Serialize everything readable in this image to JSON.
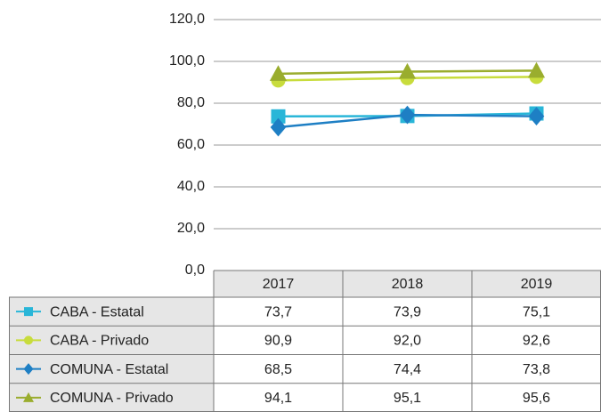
{
  "chart_data": {
    "type": "line",
    "categories": [
      "2017",
      "2018",
      "2019"
    ],
    "series": [
      {
        "name": "CABA - Estatal",
        "color": "#29b6d8",
        "marker": "square",
        "values": [
          73.7,
          73.9,
          75.1
        ],
        "value_labels": [
          "73,7",
          "73,9",
          "75,1"
        ]
      },
      {
        "name": "CABA - Privado",
        "color": "#c8dc3c",
        "marker": "circle",
        "values": [
          90.9,
          92.0,
          92.6
        ],
        "value_labels": [
          "90,9",
          "92,0",
          "92,6"
        ]
      },
      {
        "name": "COMUNA - Estatal",
        "color": "#1e7fc4",
        "marker": "diamond",
        "values": [
          68.5,
          74.4,
          73.8
        ],
        "value_labels": [
          "68,5",
          "74,4",
          "73,8"
        ]
      },
      {
        "name": "COMUNA - Privado",
        "color": "#9aad2e",
        "marker": "triangle",
        "values": [
          94.1,
          95.1,
          95.6
        ],
        "value_labels": [
          "94,1",
          "95,1",
          "95,6"
        ]
      }
    ],
    "ylim": [
      0,
      120
    ],
    "yticks": [
      {
        "value": 0,
        "label": "0,0"
      },
      {
        "value": 20,
        "label": "20,0"
      },
      {
        "value": 40,
        "label": "40,0"
      },
      {
        "value": 60,
        "label": "60,0"
      },
      {
        "value": 80,
        "label": "80,0"
      },
      {
        "value": 100,
        "label": "100,0"
      },
      {
        "value": 120,
        "label": "120,0"
      }
    ],
    "grid": true
  }
}
